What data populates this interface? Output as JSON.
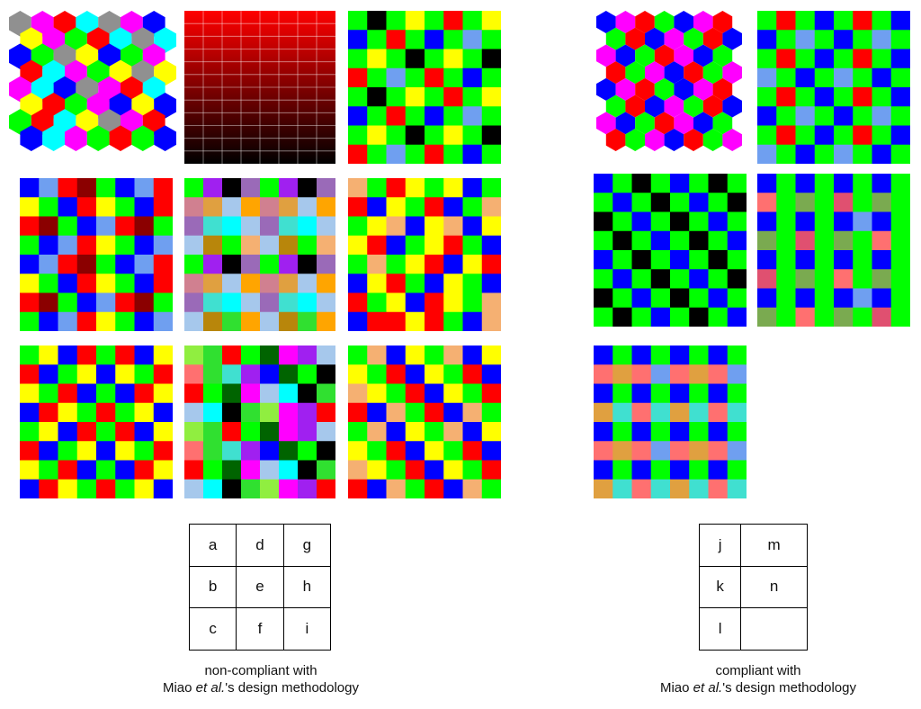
{
  "colors": {
    "R": "#ff0000",
    "G": "#00ff00",
    "B": "#0000ff",
    "Y": "#ffff00",
    "K": "#000000",
    "W": "#ffffff",
    "C": "#00ffff",
    "M": "#ff00ff",
    "L": "#6f9ff0",
    "D": "#8b0000",
    "O": "#f5b072",
    "P": "#9a6ab8",
    "V": "#a020f0",
    "T": "#b8860b",
    "Q": "#a6c8ec",
    "N": "#ffa500",
    "S": "#30e030",
    "U": "#d08090",
    "X": "#006400",
    "H": "#90ee40",
    "A": "#909090",
    "E": "#ff7070",
    "F": "#40e0d0",
    "Z": "#e0a040",
    "J": "#7aaa50",
    "I": "#e05070"
  },
  "panels": {
    "a": {
      "type": "hex",
      "rows": [
        "AMRCAMB",
        "YMGRCAC",
        "BGAYBGM",
        "RCMGYAY",
        "MCBAMRC",
        "YRGMBYB",
        "GRCYAMR",
        "BCMGRGB"
      ]
    },
    "b": {
      "type": "grid",
      "rows": [
        "BLRDGBLR",
        "YGBRYGBR",
        "RDGBLRDG",
        "GBLRYGBL",
        "BLRDGBLR",
        "YGBRYGBR",
        "RDGBLRDG",
        "GBLRYGBL"
      ]
    },
    "c": {
      "type": "grid",
      "rows": [
        "GYBRGRBY",
        "RBGYBYGR",
        "YGRBGBRY",
        "BRYGRGYB",
        "GYBRGRBY",
        "RBGYBYGR",
        "YGRBGBRY",
        "BRYGRGYB"
      ]
    },
    "d": {
      "type": "gradient",
      "cols": 8,
      "rows": 12
    },
    "e": {
      "type": "grid",
      "rows": [
        "GVKPGVKP",
        "UZQNUZQN",
        "PFCQPFCQ",
        "QTGOQTGO",
        "GVKPGVKP",
        "UZQNUZQN",
        "PFCQPFCQ",
        "QTSNQTSN"
      ]
    },
    "f": {
      "type": "grid",
      "rows": [
        "HSRGXMVQ",
        "ESFVBXGK",
        "RGXMQCKS",
        "QCKSHMVR",
        "HSRGXMVQ",
        "ESFVBXGK",
        "RGXMQCKS",
        "QCKSHMVR"
      ]
    },
    "g": {
      "type": "grid",
      "rows": [
        "GKGYGRGY",
        "BGRGBGLG",
        "GYGKGYGK",
        "RGLGRGBG",
        "GKGYGRGY",
        "BGRGBGLG",
        "GYGKGYGK",
        "RGLGRGBG"
      ]
    },
    "h": {
      "type": "grid",
      "rows": [
        "OGRYGYBG",
        "RBYGRBGO",
        "GYOBYOBY",
        "YRBGYRGB",
        "GOGYRBYR",
        "BYRGBYGB",
        "RGYBRYGO",
        "BRRYRGBO"
      ]
    },
    "i": {
      "type": "grid",
      "rows": [
        "GOBYGOBY",
        "YGRBYGRB",
        "OYGRBYGR",
        "RBOGRBOG",
        "GOBYGOBY",
        "YGRBYGRB",
        "OYGRBYGR",
        "RBOGRBOG"
      ]
    },
    "j": {
      "type": "hex",
      "rows": [
        "BMRGBMR",
        "GRBMGRB",
        "MBGRMBG",
        "RGMBRGM",
        "BMRGBMR",
        "GRBMGRB",
        "MBGRMBG",
        "RGMBRGM"
      ]
    },
    "k": {
      "type": "grid",
      "rows": [
        "BGKGBGKG",
        "GBGKGBGK",
        "KGBGKGBG",
        "GKGBGKGB",
        "BGKGBGKG",
        "GBGKGBGK",
        "KGBGKGBG",
        "GKGBGKGB"
      ]
    },
    "l": {
      "type": "grid",
      "rows": [
        "BGBGBGBG",
        "EZELEZEL",
        "BGBGBGBG",
        "ZFEFZFEF",
        "BGBGBGBG",
        "EZELEZEL",
        "BGBGBGBG",
        "ZFEFZFEF"
      ]
    },
    "m": {
      "type": "grid",
      "rows": [
        "GRGBGRGB",
        "BGLGBGLG",
        "GRGBGRGB",
        "LGBGLGBG",
        "GRGBGRGB",
        "BGLGBGLG",
        "GRGBGRGB",
        "LGBGLGBG"
      ]
    },
    "n": {
      "type": "grid",
      "rows": [
        "BGBGBGBG",
        "EGJGIGJG",
        "BGBGBLBG",
        "JGIGJGEG",
        "BGBGBGBG",
        "IGJGEGJG",
        "BGBGBLBG",
        "JGEGJGIG"
      ]
    }
  },
  "legend_left": [
    [
      "a",
      "d",
      "g"
    ],
    [
      "b",
      "e",
      "h"
    ],
    [
      "c",
      "f",
      "i"
    ]
  ],
  "legend_right": [
    [
      "j",
      "m"
    ],
    [
      "k",
      "n"
    ],
    [
      "l",
      ""
    ]
  ],
  "caption_left": {
    "line1": "non-compliant with",
    "pre": "Miao ",
    "em": "et al.",
    "post": "'s design methodology"
  },
  "caption_right": {
    "line1": "compliant with",
    "pre": "Miao ",
    "em": "et al.",
    "post": "'s design methodology"
  }
}
